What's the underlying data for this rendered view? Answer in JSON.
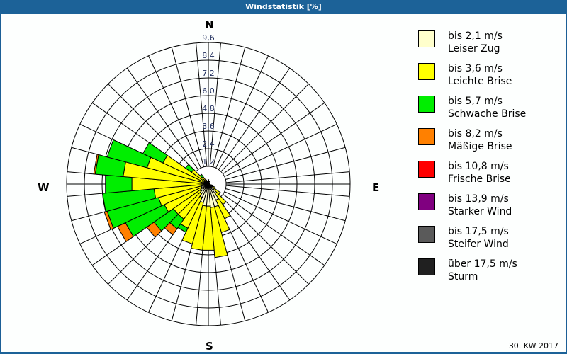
{
  "header": {
    "title": "Windstatistik [%]"
  },
  "footer": {
    "week_label": "30. KW 2017"
  },
  "compass": {
    "north": "N",
    "east": "E",
    "south": "S",
    "west": "W"
  },
  "chart_data": {
    "type": "polar-stacked-bar (wind rose)",
    "title": "Windstatistik [%]",
    "radial_unit": "%",
    "radial_ticks": [
      "1,2",
      "2,4",
      "3,6",
      "4,8",
      "6,0",
      "7,2",
      "8,4",
      "9,6"
    ],
    "radial_max": 9.6,
    "sector_width_deg": 10,
    "directions_deg": [
      0,
      10,
      20,
      30,
      40,
      50,
      60,
      70,
      80,
      90,
      100,
      110,
      120,
      130,
      140,
      150,
      160,
      170,
      180,
      190,
      200,
      210,
      220,
      230,
      240,
      250,
      260,
      270,
      280,
      290,
      300,
      310,
      320,
      330,
      340,
      350
    ],
    "series": [
      {
        "name": "bis 2,1 m/s Leiser Zug",
        "color": "#ffffcc",
        "values": [
          0.2,
          0.1,
          0.1,
          0.1,
          0.1,
          0.1,
          0.1,
          0.1,
          0.1,
          0.1,
          0.1,
          0.2,
          0.3,
          0.5,
          0.8,
          1.2,
          1.6,
          1.6,
          1.5,
          1.5,
          1.3,
          1.0,
          0.8,
          0.7,
          0.6,
          0.5,
          0.4,
          0.3,
          0.3,
          0.3,
          0.3,
          0.2,
          0.2,
          0.2,
          0.1,
          0.1
        ]
      },
      {
        "name": "bis 3,6 m/s Leichte Brise",
        "color": "#ffff00",
        "values": [
          0.1,
          0.1,
          0.1,
          0.0,
          0.0,
          0.0,
          0.0,
          0.0,
          0.0,
          0.0,
          0.0,
          0.1,
          0.2,
          0.5,
          0.9,
          1.4,
          1.8,
          3.4,
          3.0,
          3.0,
          2.9,
          2.3,
          2.1,
          2.2,
          2.7,
          3.0,
          3.3,
          4.9,
          5.5,
          4.0,
          3.1,
          1.2,
          0.4,
          0.1,
          0.1,
          0.1
        ]
      },
      {
        "name": "bis 5,7 m/s Schwache Brise",
        "color": "#00ee00",
        "values": [
          0.0,
          0.0,
          0.0,
          0.0,
          0.0,
          0.0,
          0.0,
          0.0,
          0.0,
          0.0,
          0.0,
          0.0,
          0.0,
          0.0,
          0.0,
          0.0,
          0.0,
          0.0,
          0.0,
          0.0,
          0.0,
          0.3,
          0.8,
          1.6,
          2.9,
          3.6,
          3.5,
          1.8,
          1.9,
          2.8,
          1.5,
          0.5,
          0.2,
          0.0,
          0.0,
          0.0
        ]
      },
      {
        "name": "bis 8,2 m/s Mäßige Brise",
        "color": "#ff8000",
        "values": [
          0,
          0,
          0,
          0,
          0,
          0,
          0,
          0,
          0,
          0,
          0,
          0,
          0,
          0,
          0,
          0,
          0,
          0,
          0,
          0,
          0,
          0,
          0.5,
          0.6,
          0.6,
          0.2,
          0,
          0,
          0.1,
          0,
          0,
          0,
          0,
          0,
          0,
          0
        ]
      },
      {
        "name": "bis 10,8 m/s Frische Brise",
        "color": "#ff0000",
        "values": [
          0,
          0,
          0,
          0,
          0,
          0,
          0,
          0,
          0,
          0,
          0,
          0,
          0,
          0,
          0,
          0,
          0,
          0,
          0,
          0,
          0,
          0,
          0,
          0,
          0,
          0,
          0,
          0,
          0,
          0,
          0,
          0,
          0,
          0,
          0,
          0
        ]
      },
      {
        "name": "bis 13,9 m/s Starker Wind",
        "color": "#800080",
        "values": [
          0,
          0,
          0,
          0,
          0,
          0,
          0,
          0,
          0,
          0,
          0,
          0,
          0,
          0,
          0,
          0,
          0,
          0,
          0,
          0,
          0,
          0,
          0,
          0,
          0,
          0,
          0,
          0,
          0,
          0,
          0,
          0,
          0,
          0,
          0,
          0
        ]
      },
      {
        "name": "bis 17,5 m/s Steifer Wind",
        "color": "#5a5a5a",
        "values": [
          0,
          0,
          0,
          0,
          0,
          0,
          0,
          0,
          0,
          0,
          0,
          0,
          0,
          0,
          0,
          0,
          0,
          0,
          0,
          0,
          0,
          0,
          0,
          0,
          0,
          0,
          0,
          0,
          0,
          0,
          0,
          0,
          0,
          0,
          0,
          0
        ]
      },
      {
        "name": "über 17,5 m/s Sturm",
        "color": "#202020",
        "values": [
          0,
          0,
          0,
          0,
          0,
          0,
          0,
          0,
          0,
          0,
          0,
          0,
          0,
          0,
          0,
          0,
          0,
          0,
          0,
          0,
          0,
          0,
          0,
          0,
          0,
          0,
          0,
          0,
          0,
          0,
          0,
          0,
          0,
          0,
          0,
          0
        ]
      }
    ],
    "legend_position": "right",
    "grid": true,
    "annotation": "30. KW 2017"
  },
  "legend": {
    "items": [
      {
        "line1": "bis 2,1 m/s",
        "line2": "Leiser Zug",
        "color": "#ffffcc"
      },
      {
        "line1": "bis 3,6 m/s",
        "line2": "Leichte Brise",
        "color": "#ffff00"
      },
      {
        "line1": "bis 5,7 m/s",
        "line2": "Schwache Brise",
        "color": "#00ee00"
      },
      {
        "line1": "bis 8,2 m/s",
        "line2": "Mäßige Brise",
        "color": "#ff8000"
      },
      {
        "line1": "bis 10,8 m/s",
        "line2": "Frische Brise",
        "color": "#ff0000"
      },
      {
        "line1": "bis 13,9 m/s",
        "line2": "Starker Wind",
        "color": "#800080"
      },
      {
        "line1": "bis 17,5 m/s",
        "line2": "Steifer Wind",
        "color": "#5a5a5a"
      },
      {
        "line1": "über 17,5 m/s",
        "line2": "Sturm",
        "color": "#202020"
      }
    ]
  }
}
